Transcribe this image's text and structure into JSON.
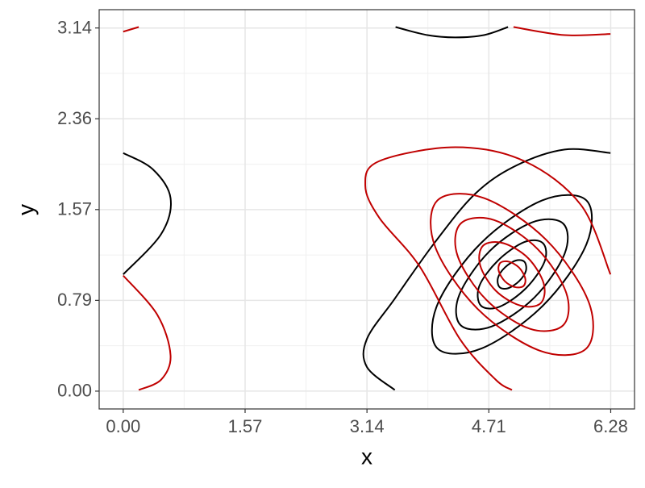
{
  "chart_data": {
    "type": "contour",
    "xlabel": "x",
    "ylabel": "y",
    "xlim": [
      -0.31,
      6.59
    ],
    "ylim": [
      -0.154,
      3.3
    ],
    "xticks": [
      {
        "value": 0,
        "label": "0.00"
      },
      {
        "value": 1.5708,
        "label": "1.57"
      },
      {
        "value": 3.1416,
        "label": "3.14"
      },
      {
        "value": 4.7124,
        "label": "4.71"
      },
      {
        "value": 6.2832,
        "label": "6.28"
      }
    ],
    "yticks": [
      {
        "value": 0,
        "label": "0.00"
      },
      {
        "value": 0.7854,
        "label": "0.79"
      },
      {
        "value": 1.5708,
        "label": "1.57"
      },
      {
        "value": 2.3562,
        "label": "2.36"
      },
      {
        "value": 3.1416,
        "label": "3.14"
      }
    ],
    "minor_xticks": [
      0.785,
      2.356,
      3.927,
      5.498
    ],
    "minor_yticks": [
      0.393,
      1.178,
      1.963,
      2.749
    ],
    "grid": true,
    "contours": [
      {
        "color": "#000000",
        "closed": true,
        "x": [
          5.17,
          5.19,
          5.1,
          4.96,
          4.85,
          4.83,
          4.92,
          5.06
        ],
        "y": [
          1.12,
          1.04,
          0.95,
          0.89,
          0.9,
          0.98,
          1.07,
          1.13
        ]
      },
      {
        "color": "#000000",
        "closed": true,
        "x": [
          5.41,
          5.43,
          5.19,
          4.85,
          4.61,
          4.59,
          4.83,
          5.17
        ],
        "y": [
          1.28,
          1.12,
          0.89,
          0.73,
          0.74,
          0.91,
          1.13,
          1.29
        ]
      },
      {
        "color": "#000000",
        "closed": true,
        "x": [
          5.67,
          5.69,
          5.3,
          4.75,
          4.35,
          4.33,
          4.72,
          5.27
        ],
        "y": [
          1.45,
          1.19,
          0.81,
          0.56,
          0.57,
          0.83,
          1.21,
          1.46
        ]
      },
      {
        "color": "#000000",
        "closed": true,
        "x": [
          5.97,
          5.97,
          5.41,
          4.62,
          4.05,
          4.05,
          4.61,
          5.4
        ],
        "y": [
          1.65,
          1.27,
          0.74,
          0.37,
          0.37,
          0.75,
          1.28,
          1.65
        ]
      },
      {
        "color": "#000000",
        "closed": false,
        "x": [
          3.5,
          3.14,
          3.14,
          3.5,
          4.02,
          4.54,
          5.06,
          5.69,
          6.28
        ],
        "y": [
          0.01,
          0.21,
          0.45,
          0.8,
          1.29,
          1.71,
          1.95,
          2.09,
          2.06
        ]
      },
      {
        "color": "#000000",
        "closed": false,
        "x": [
          3.51,
          3.92,
          4.28,
          4.65,
          4.96
        ],
        "y": [
          3.15,
          3.08,
          3.06,
          3.08,
          3.15
        ]
      },
      {
        "color": "#000000",
        "closed": false,
        "x": [
          0,
          0.38,
          0.61,
          0.49,
          0
        ],
        "y": [
          2.06,
          1.92,
          1.67,
          1.36,
          1.01
        ]
      },
      {
        "color": "#c00000",
        "closed": true,
        "x": [
          5.16,
          5.18,
          5.1,
          4.97,
          4.86,
          4.84,
          4.92,
          5.05
        ],
        "y": [
          0.91,
          0.98,
          1.07,
          1.12,
          1.11,
          1.04,
          0.95,
          0.9
        ]
      },
      {
        "color": "#c00000",
        "closed": true,
        "x": [
          5.38,
          5.42,
          5.22,
          4.9,
          4.64,
          4.6,
          4.8,
          5.12
        ],
        "y": [
          0.76,
          0.93,
          1.15,
          1.28,
          1.26,
          1.09,
          0.87,
          0.74
        ]
      },
      {
        "color": "#c00000",
        "closed": true,
        "x": [
          5.67,
          5.71,
          5.34,
          4.78,
          4.35,
          4.31,
          4.68,
          5.24
        ],
        "y": [
          0.57,
          0.85,
          1.23,
          1.48,
          1.45,
          1.17,
          0.79,
          0.54
        ]
      },
      {
        "color": "#c00000",
        "closed": true,
        "x": [
          5.97,
          6.0,
          5.45,
          4.65,
          4.05,
          4.02,
          4.57,
          5.37
        ],
        "y": [
          0.37,
          0.77,
          1.31,
          1.67,
          1.65,
          1.25,
          0.71,
          0.35
        ]
      },
      {
        "color": "#c00000",
        "closed": false,
        "x": [
          6.28,
          5.9,
          5.17,
          4.28,
          3.3,
          3.12,
          3.3,
          3.82,
          4.34,
          4.8,
          5.01
        ],
        "y": [
          1.01,
          1.61,
          1.99,
          2.11,
          1.99,
          1.78,
          1.5,
          1.08,
          0.45,
          0.1,
          0.01
        ]
      },
      {
        "color": "#c00000",
        "closed": false,
        "x": [
          0,
          0.44,
          0.61,
          0.49,
          0.2
        ],
        "y": [
          1.0,
          0.66,
          0.31,
          0.1,
          0.01
        ]
      },
      {
        "color": "#c00000",
        "closed": false,
        "x": [
          0,
          0.2
        ],
        "y": [
          3.11,
          3.15
        ]
      },
      {
        "color": "#c00000",
        "closed": false,
        "x": [
          5.03,
          5.69,
          6.28
        ],
        "y": [
          3.15,
          3.08,
          3.09
        ]
      }
    ]
  }
}
